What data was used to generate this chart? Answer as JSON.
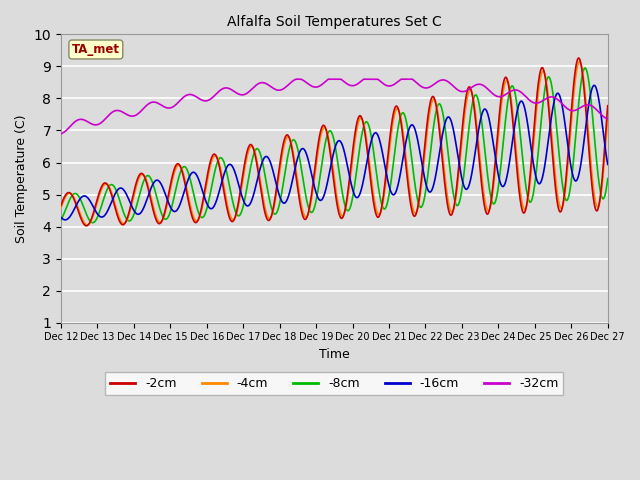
{
  "title": "Alfalfa Soil Temperatures Set C",
  "xlabel": "Time",
  "ylabel": "Soil Temperature (C)",
  "ylim": [
    1.0,
    10.0
  ],
  "yticks": [
    1.0,
    2.0,
    3.0,
    4.0,
    5.0,
    6.0,
    7.0,
    8.0,
    9.0,
    10.0
  ],
  "plot_bg_color": "#dcdcdc",
  "fig_bg_color": "#dcdcdc",
  "grid_color": "#ffffff",
  "legend_labels": [
    "-2cm",
    "-4cm",
    "-8cm",
    "-16cm",
    "-32cm"
  ],
  "legend_colors": [
    "#cc0000",
    "#ff8800",
    "#00bb00",
    "#0000cc",
    "#cc00cc"
  ],
  "annotation_text": "TA_met",
  "annotation_color": "#990000",
  "annotation_bg": "#ffffcc",
  "line_width": 1.2
}
